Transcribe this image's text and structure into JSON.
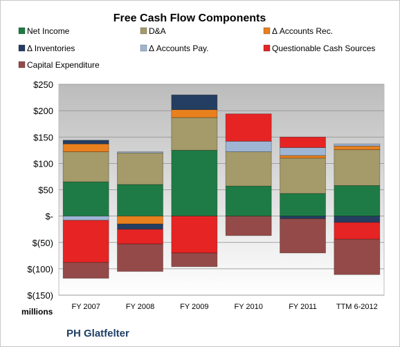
{
  "chart_data": {
    "type": "bar",
    "stacked": true,
    "title": "Free Cash Flow Components",
    "unit_label": "millions",
    "source_label": "PH Glatfelter",
    "categories": [
      "FY 2007",
      "FY 2008",
      "FY 2009",
      "FY 2010",
      "FY 2011",
      "TTM 6-2012"
    ],
    "ylim": [
      -150,
      250
    ],
    "yticks": [
      {
        "value": 250,
        "label": "$250"
      },
      {
        "value": 200,
        "label": "$200"
      },
      {
        "value": 150,
        "label": "$150"
      },
      {
        "value": 100,
        "label": "$100"
      },
      {
        "value": 50,
        "label": "$50"
      },
      {
        "value": 0,
        "label": "$-"
      },
      {
        "value": -50,
        "label": "$(50)"
      },
      {
        "value": -100,
        "label": "$(100)"
      },
      {
        "value": -150,
        "label": "$(150)"
      }
    ],
    "grid": true,
    "legend_position": "top",
    "series": [
      {
        "name": "Net Income",
        "color": "#1e7b45",
        "values": [
          65,
          60,
          125,
          57,
          43,
          58
        ]
      },
      {
        "name": "D&A",
        "color": "#a49a6a",
        "values": [
          57,
          60,
          62,
          65,
          67,
          68
        ]
      },
      {
        "name": "Δ Accounts Rec.",
        "color": "#e8801e",
        "values": [
          15,
          -15,
          15,
          0,
          5,
          7
        ]
      },
      {
        "name": "Δ Inventories",
        "color": "#243e62",
        "values": [
          7,
          -10,
          28,
          0,
          -5,
          -12
        ]
      },
      {
        "name": "Δ Accounts Pay.",
        "color": "#9fb5d4",
        "values": [
          -8,
          2,
          0,
          20,
          15,
          4
        ]
      },
      {
        "name": "Questionable Cash Sources",
        "color": "#e62424",
        "values": [
          -80,
          -28,
          -70,
          52,
          20,
          -32
        ]
      },
      {
        "name": "Capital Expenditure",
        "color": "#944a49",
        "values": [
          -30,
          -52,
          -26,
          -37,
          -65,
          -67
        ]
      }
    ]
  }
}
